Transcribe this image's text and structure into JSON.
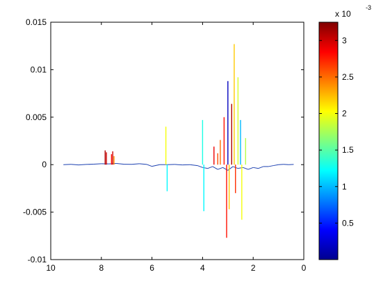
{
  "chart_data": {
    "type": "line",
    "title": "",
    "xlabel": "",
    "ylabel": "",
    "xlim": [
      10,
      0
    ],
    "x_reversed": true,
    "ylim": [
      -0.01,
      0.015
    ],
    "x_ticks": [
      10,
      8,
      6,
      4,
      2,
      0
    ],
    "x_tick_labels": [
      "10",
      "8",
      "6",
      "4",
      "2",
      "0"
    ],
    "y_ticks": [
      -0.01,
      -0.005,
      0,
      0.005,
      0.01,
      0.015
    ],
    "y_tick_labels": [
      "-0.01",
      "-0.005",
      "0",
      "0.005",
      "0.01",
      "0.015"
    ],
    "grid": false,
    "colorbar": {
      "colormap": "jet",
      "range": [
        0,
        3.25
      ],
      "ticks": [
        0.5,
        1,
        1.5,
        2,
        2.5,
        3
      ],
      "tick_labels": [
        "0.5",
        "1",
        "1.5",
        "2",
        "2.5",
        "3"
      ],
      "exponent_label": "x 10",
      "exponent_power": "-3"
    },
    "series": [
      {
        "style": "baseline",
        "x": [
          9.5,
          9.2,
          8.9,
          8.6,
          8.3,
          8.0,
          7.7,
          7.4,
          7.1,
          6.8,
          6.5,
          6.2,
          6.0,
          5.7,
          5.4,
          5.1,
          4.8,
          4.5,
          4.2,
          4.0,
          3.8,
          3.6,
          3.4,
          3.2,
          3.0,
          2.8,
          2.6,
          2.4,
          2.2,
          2.0,
          1.8,
          1.6,
          1.4,
          1.2,
          1.0,
          0.8,
          0.6,
          0.4
        ],
        "y": [
          0.0,
          3e-05,
          -3e-05,
          2e-05,
          5e-05,
          0.0001,
          8e-05,
          0.00012,
          4e-05,
          3e-05,
          0.0001,
          2e-05,
          -0.00018,
          0.0,
          0.0,
          2e-05,
          -3e-05,
          0.0,
          -0.0001,
          -0.0003,
          -0.0004,
          -0.0002,
          -0.0005,
          -0.0003,
          -0.0006,
          -0.0002,
          -0.0004,
          -0.0003,
          -0.0005,
          -0.0003,
          -0.0004,
          -0.0002,
          -0.0002,
          -0.0001,
          0.0,
          3e-05,
          0.0,
          2e-05
        ]
      },
      {
        "style": "spikes",
        "x": [
          7.85,
          7.8,
          7.6,
          7.55,
          7.5,
          5.45,
          5.4,
          4.0,
          3.95,
          3.55,
          3.4,
          3.3,
          3.15,
          3.05,
          3.0,
          2.95,
          2.85,
          2.75,
          2.7,
          2.6,
          2.5,
          2.45,
          2.3
        ],
        "y": [
          0.0015,
          0.0013,
          0.0011,
          0.0014,
          0.0009,
          0.004,
          -0.0028,
          0.0047,
          -0.0049,
          0.0019,
          0.0012,
          0.0026,
          0.005,
          -0.0077,
          0.0088,
          -0.0047,
          0.0064,
          0.0127,
          -0.003,
          0.0092,
          0.0047,
          -0.0058,
          0.0028
        ],
        "color_values": [
          3.1,
          3.0,
          2.8,
          3.0,
          2.4,
          2.0,
          1.2,
          1.3,
          1.2,
          2.9,
          2.6,
          2.5,
          2.8,
          2.8,
          0.2,
          2.2,
          3.1,
          2.2,
          2.7,
          1.9,
          1.0,
          2.0,
          1.8
        ]
      }
    ]
  }
}
